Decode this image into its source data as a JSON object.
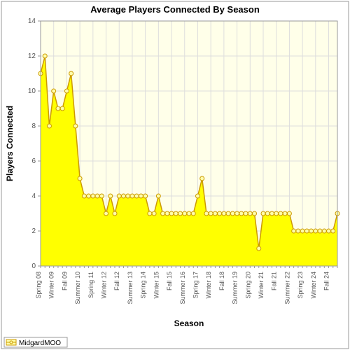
{
  "chart": {
    "type": "area",
    "title": "Average Players Connected By Season",
    "title_fontsize": 13,
    "xlabel": "Season",
    "ylabel": "Players Connected",
    "label_fontsize": 12,
    "background_color": "#ffffff",
    "plot_background_color": "#ffffe9",
    "border_color": "#999999",
    "grid_color": "#dddddd",
    "series_name": "MidgardMOO",
    "line_color": "#cc9900",
    "fill_color": "#ffff00",
    "marker_fill": "#ffffaa",
    "marker_stroke": "#cc9900",
    "marker_radius": 3,
    "line_width": 1.5,
    "ylim": [
      0,
      14
    ],
    "ytick_step": 2,
    "yticks": [
      0,
      2,
      4,
      6,
      8,
      10,
      12,
      14
    ],
    "x_major_labels": [
      "Spring 08",
      "Winter 09",
      "Fall 09",
      "Summer 10",
      "Spring 11",
      "Winter 12",
      "Fall 12",
      "Summer 13",
      "Spring 14",
      "Winter 15",
      "Fall 15",
      "Summer 16",
      "Spring 17",
      "Winter 18",
      "Fall 18",
      "Summer 19",
      "Spring 20",
      "Winter 21",
      "Fall 21",
      "Summer 22",
      "Spring 23",
      "Winter 24",
      "Fall 24"
    ],
    "x_major_step": 3,
    "values": [
      11,
      12,
      8,
      10,
      9,
      9,
      10,
      11,
      8,
      5,
      4,
      4,
      4,
      4,
      4,
      3,
      4,
      3,
      4,
      4,
      4,
      4,
      4,
      4,
      4,
      3,
      3,
      4,
      3,
      3,
      3,
      3,
      3,
      3,
      3,
      3,
      4,
      5,
      3,
      3,
      3,
      3,
      3,
      3,
      3,
      3,
      3,
      3,
      3,
      3,
      1,
      3,
      3,
      3,
      3,
      3,
      3,
      3,
      2,
      2,
      2,
      2,
      2,
      2,
      2,
      2,
      2,
      2,
      3
    ],
    "tick_fontsize": 10,
    "x_tick_fontsize": 9,
    "legend_box_fill": "#ffffaa",
    "legend_box_stroke": "#cc9900"
  }
}
